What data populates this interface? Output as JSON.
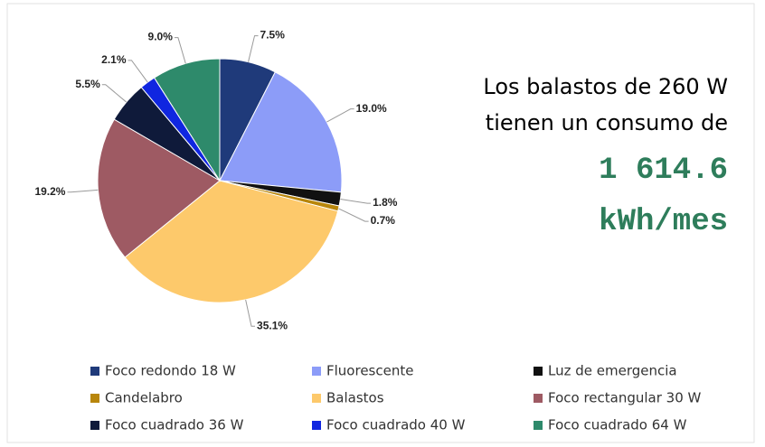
{
  "chart_data": {
    "type": "pie",
    "categories": [
      "Foco redondo 18 W",
      "Fluorescente",
      "Luz de emergencia",
      "Candelabro",
      "Balastos",
      "Foco rectangular 30 W",
      "Foco cuadrado 36 W",
      "Foco cuadrado 40 W",
      "Foco cuadrado 64 W"
    ],
    "values": [
      7.5,
      19.0,
      1.8,
      0.7,
      35.1,
      19.2,
      5.5,
      2.1,
      9.0
    ],
    "value_labels": [
      "7.5%",
      "19.0%",
      "1.8%",
      "0.7%",
      "35.1%",
      "19.2%",
      "5.5%",
      "2.1%",
      "9.0%"
    ],
    "colors": [
      "#1f3a7a",
      "#8c9cf8",
      "#111111",
      "#b8860b",
      "#fdc96b",
      "#9e5a63",
      "#0f1a3a",
      "#1026e0",
      "#2e8a6b"
    ],
    "legend": "bottom",
    "annotation": {
      "lines": [
        "Los balastos de 260 W",
        "tienen un consumo de"
      ],
      "highlight": [
        "1 614.6",
        "kWh/mes"
      ]
    }
  }
}
